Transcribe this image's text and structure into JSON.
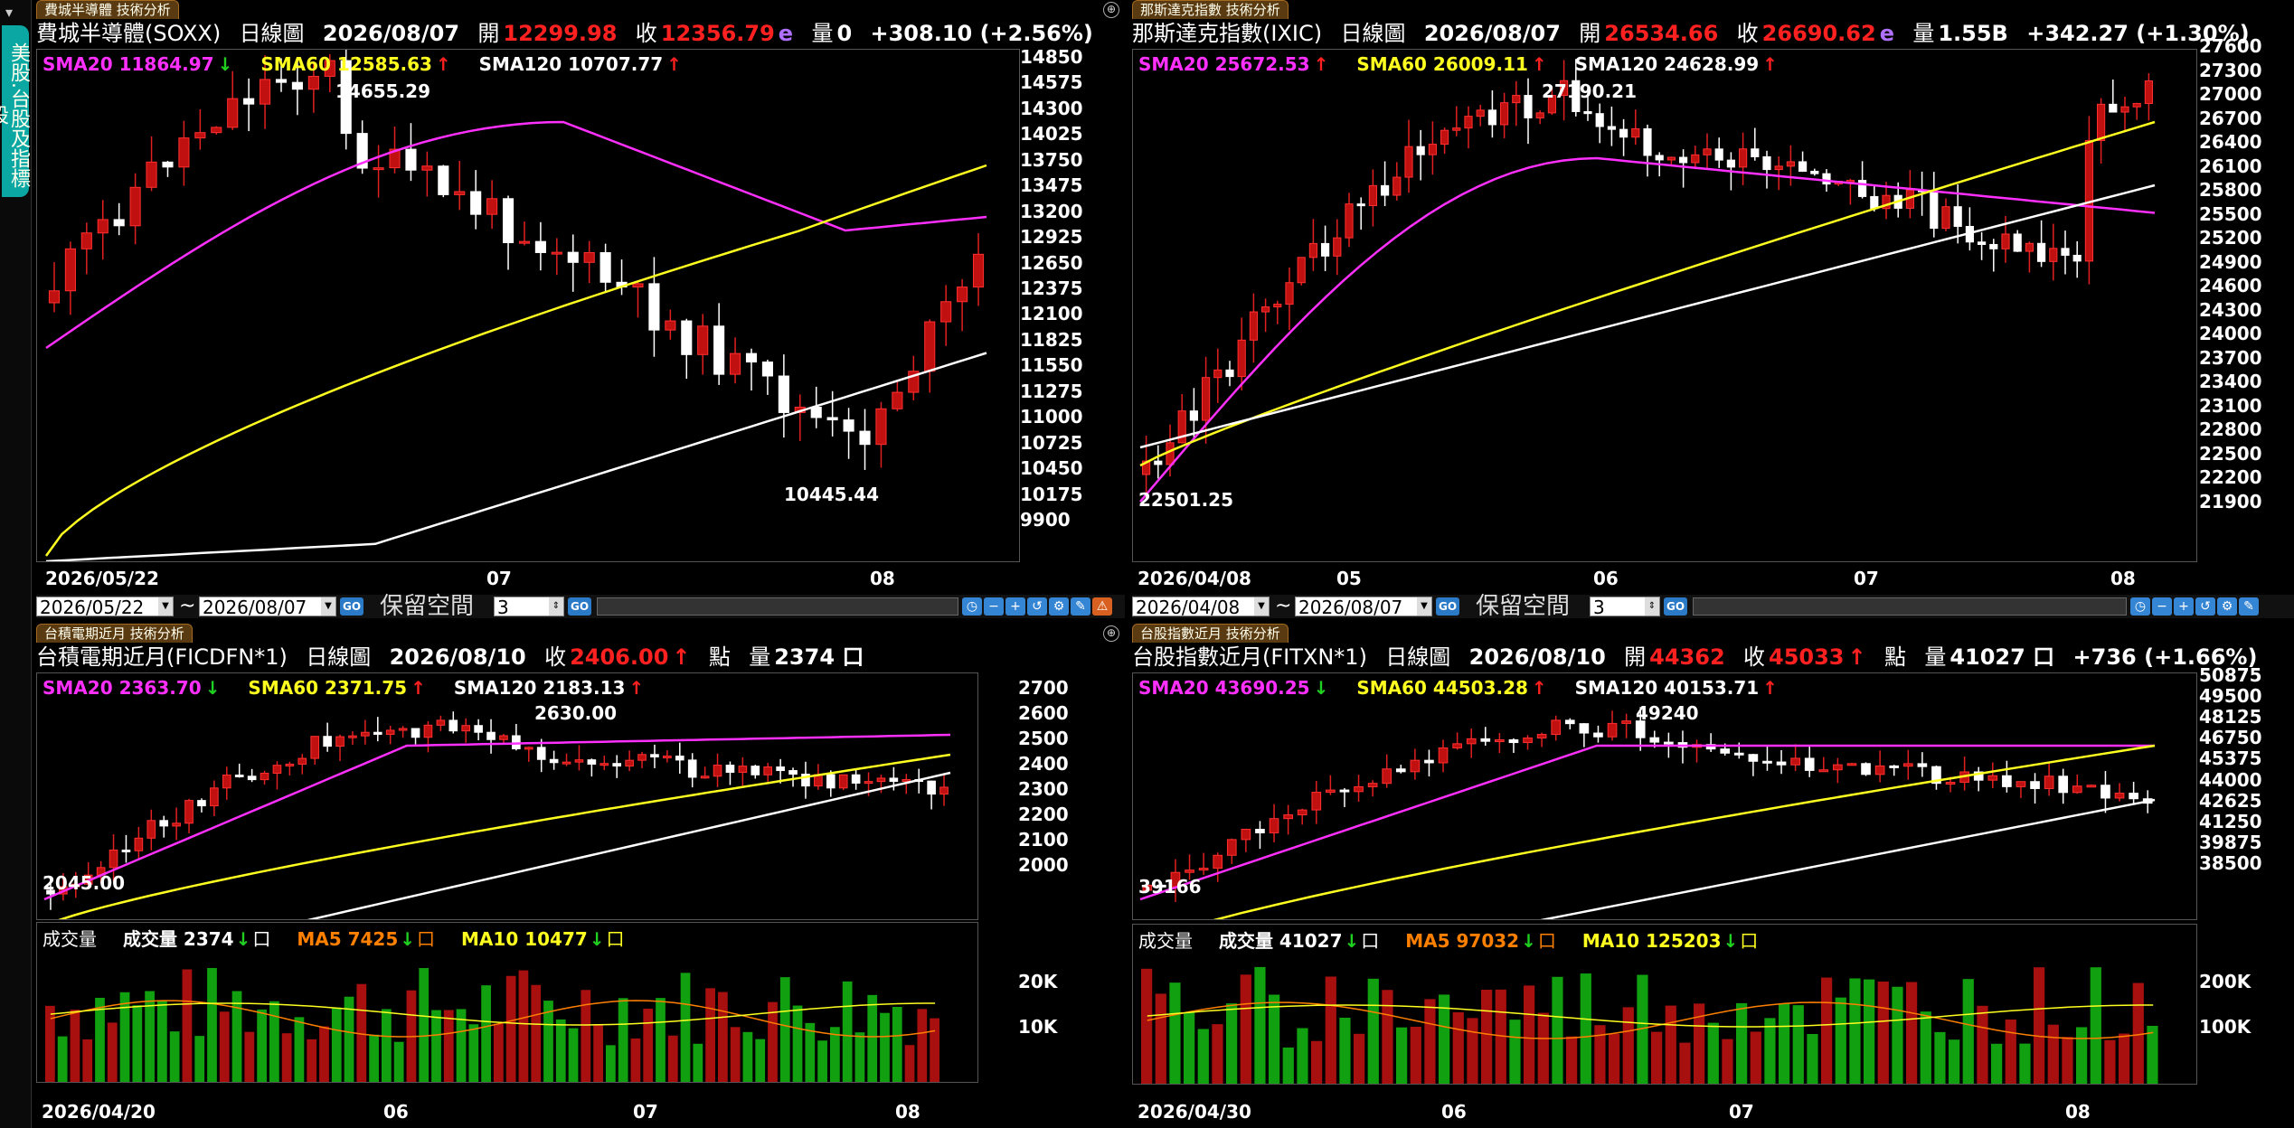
{
  "sidebar": {
    "tab_label": "美股.台股及指標股"
  },
  "panels": [
    {
      "title": "費城半導體 技術分析",
      "symbol": "費城半導體(SOXX)",
      "period": "日線圖",
      "date": "2026/08/07",
      "open_label": "開",
      "open": "12299.98",
      "close_label": "收",
      "close": "12356.79",
      "close_mark": "e",
      "vol_label": "量",
      "vol": "0",
      "change": "+308.10 (+2.56%)",
      "sma": [
        {
          "label": "SMA20 11864.97",
          "arrow": "↓"
        },
        {
          "label": "SMA60 12585.63",
          "arrow": "↑"
        },
        {
          "label": "SMA120 10707.77",
          "arrow": "↑"
        }
      ],
      "yticks": [
        "14850",
        "14575",
        "14300",
        "14025",
        "13750",
        "13475",
        "13200",
        "12925",
        "12650",
        "12375",
        "12100",
        "11825",
        "11550",
        "11275",
        "11000",
        "10725",
        "10450",
        "10175",
        "9900"
      ],
      "xticks": [
        "2026/05/22",
        "07",
        "08"
      ],
      "annot_high": "14655.29",
      "annot_low": "10445.44",
      "toolbar": {
        "from": "2026/05/22",
        "to": "2026/08/07",
        "reserve_label": "保留空間",
        "reserve_value": "3",
        "go": "GO"
      }
    },
    {
      "title": "那斯達克指數 技術分析",
      "symbol": "那斯達克指數(IXIC)",
      "period": "日線圖",
      "date": "2026/08/07",
      "open_label": "開",
      "open": "26534.66",
      "close_label": "收",
      "close": "26690.62",
      "close_mark": "e",
      "vol_label": "量",
      "vol": "1.55B",
      "change": "+342.27 (+1.30%)",
      "sma": [
        {
          "label": "SMA20 25672.53",
          "arrow": "↑"
        },
        {
          "label": "SMA60 26009.11",
          "arrow": "↑"
        },
        {
          "label": "SMA120 24628.99",
          "arrow": "↑"
        }
      ],
      "yticks": [
        "27600",
        "27300",
        "27000",
        "26700",
        "26400",
        "26100",
        "25800",
        "25500",
        "25200",
        "24900",
        "24600",
        "24300",
        "24000",
        "23700",
        "23400",
        "23100",
        "22800",
        "22500",
        "22200",
        "21900"
      ],
      "xticks": [
        "2026/04/08",
        "05",
        "06",
        "07",
        "08"
      ],
      "annot_high": "27190.21",
      "annot_low": "22501.25",
      "toolbar": {
        "from": "2026/04/08",
        "to": "2026/08/07",
        "reserve_label": "保留空間",
        "reserve_value": "3",
        "go": "GO"
      }
    },
    {
      "title": "台積電期近月 技術分析",
      "symbol": "台積電期近月(FICDFN*1)",
      "period": "日線圖",
      "date": "2026/08/10",
      "close_label": "收",
      "close": "2406.00",
      "close_arrow": "↑",
      "unit": "點",
      "vol_label": "量",
      "vol": "2374 口",
      "sma": [
        {
          "label": "SMA20 2363.70",
          "arrow": "↓"
        },
        {
          "label": "SMA60 2371.75",
          "arrow": "↑"
        },
        {
          "label": "SMA120 2183.13",
          "arrow": "↑"
        }
      ],
      "yticks": [
        "2700",
        "2600",
        "2500",
        "2400",
        "2300",
        "2200",
        "2100",
        "2000"
      ],
      "annot_high": "2630.00",
      "annot_low": "2045.00",
      "volume": {
        "label": "成交量",
        "cur": "成交量 2374",
        "cur_arrow": "↓",
        "cur_unit": "口",
        "ma5": "MA5 7425",
        "ma5_arrow": "↓",
        "ma5_unit": "口",
        "ma10": "MA10 10477",
        "ma10_arrow": "↓",
        "ma10_unit": "口",
        "yticks": [
          "20K",
          "10K"
        ]
      },
      "xticks": [
        "2026/04/20",
        "06",
        "07",
        "08"
      ]
    },
    {
      "title": "台股指數近月 技術分析",
      "symbol": "台股指數近月(FITXN*1)",
      "period": "日線圖",
      "date": "2026/08/10",
      "open_label": "開",
      "open": "44362",
      "close_label": "收",
      "close": "45033",
      "close_arrow": "↑",
      "unit": "點",
      "vol_label": "量",
      "vol": "41027 口",
      "change": "+736 (+1.66%)",
      "sma": [
        {
          "label": "SMA20 43690.25",
          "arrow": "↓"
        },
        {
          "label": "SMA60 44503.28",
          "arrow": "↑"
        },
        {
          "label": "SMA120 40153.71",
          "arrow": "↑"
        }
      ],
      "yticks": [
        "50875",
        "49500",
        "48125",
        "46750",
        "45375",
        "44000",
        "42625",
        "41250",
        "39875",
        "38500"
      ],
      "annot_high": "49240",
      "annot_low": "39166",
      "volume": {
        "label": "成交量",
        "cur": "成交量 41027",
        "cur_arrow": "↓",
        "cur_unit": "口",
        "ma5": "MA5 97032",
        "ma5_arrow": "↓",
        "ma5_unit": "口",
        "ma10": "MA10 125203",
        "ma10_arrow": "↓",
        "ma10_unit": "口",
        "yticks": [
          "200K",
          "100K"
        ]
      },
      "xticks": [
        "2026/04/30",
        "06",
        "07",
        "08"
      ]
    }
  ],
  "colors": {
    "up": "#c01010",
    "down": "#ffffff",
    "sma20": "#ff30ff",
    "sma60": "#ffff20",
    "sma120": "#ffffff",
    "vol_up": "#a81010",
    "vol_down": "#10a010"
  }
}
